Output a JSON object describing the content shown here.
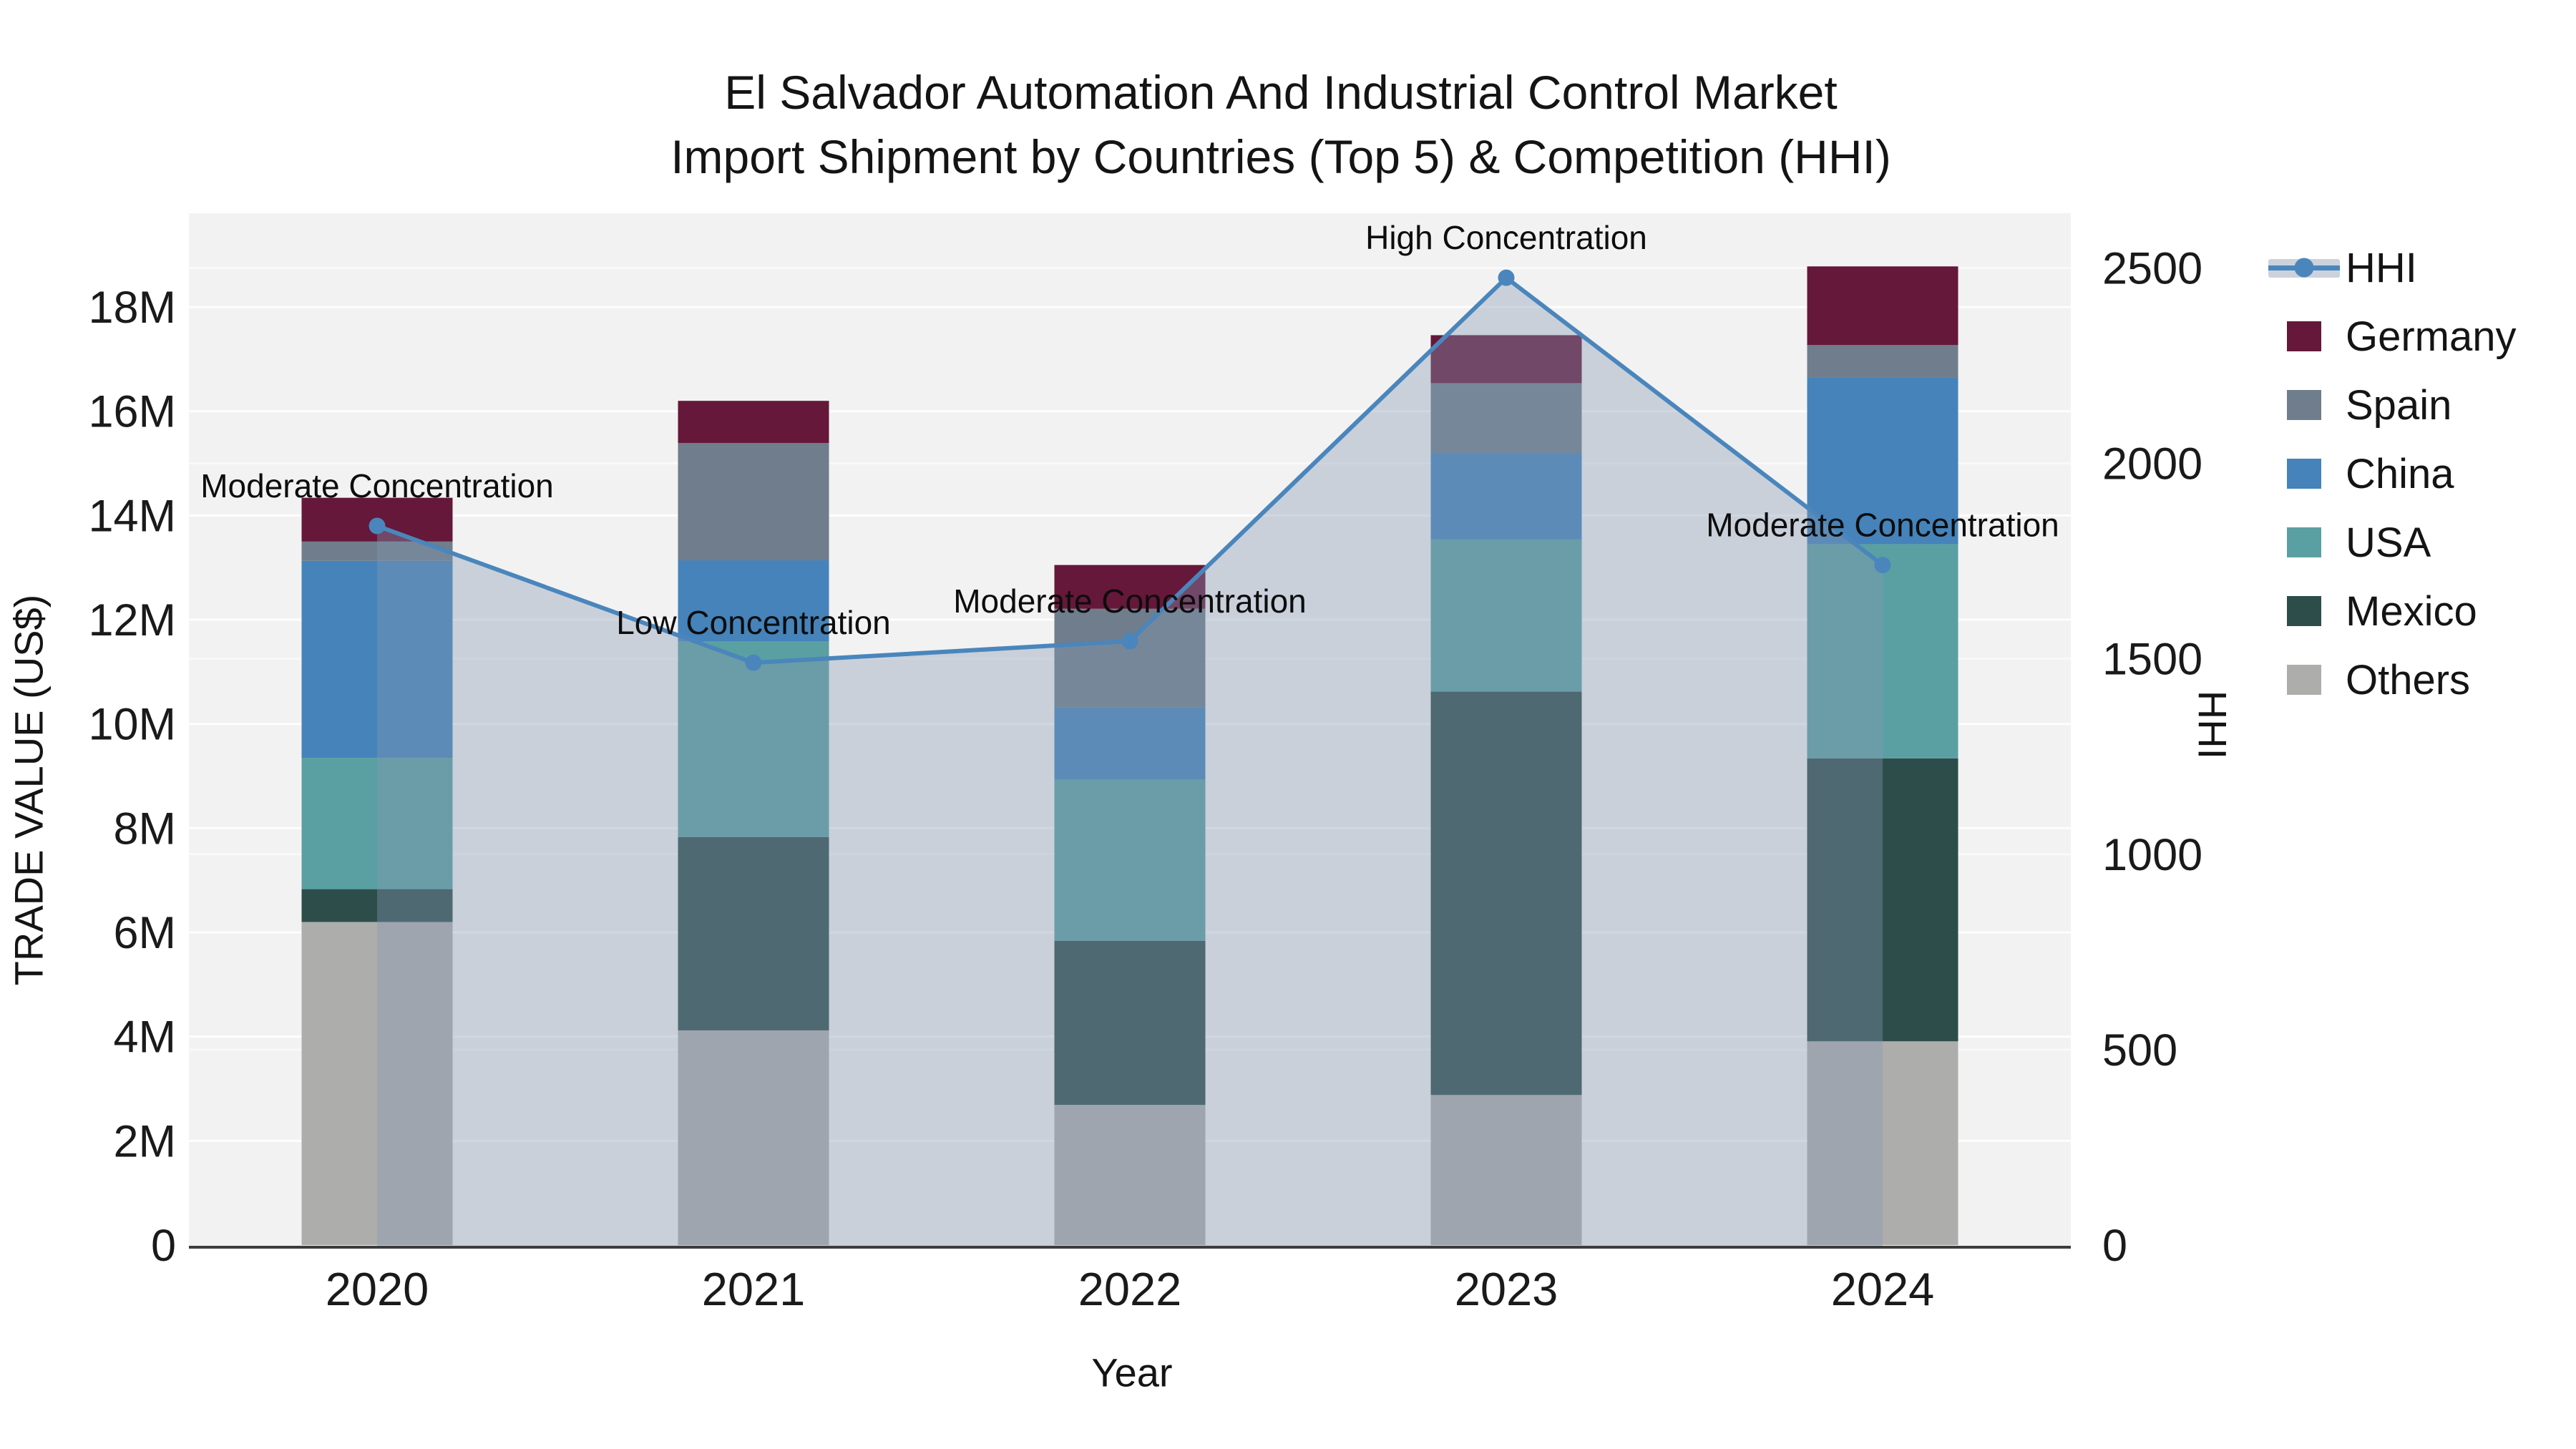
{
  "chart_data": {
    "type": "stacked-bar+line",
    "title1": "El Salvador Automation And Industrial Control Market",
    "title2": "Import Shipment by Countries (Top 5) & Competition (HHI)",
    "xlabel": "Year",
    "ylabel": "TRADE VALUE (US$)",
    "y2label": "HHI",
    "categories": [
      "2020",
      "2021",
      "2022",
      "2023",
      "2024"
    ],
    "series": [
      {
        "name": "Others",
        "color": "#ADADAB",
        "values": [
          6.2,
          4.12,
          2.69,
          2.88,
          3.91
        ]
      },
      {
        "name": "Mexico",
        "color": "#2D4D4B",
        "values": [
          0.63,
          3.71,
          3.15,
          7.74,
          5.43
        ]
      },
      {
        "name": "USA",
        "color": "#5AA0A2",
        "values": [
          2.52,
          3.75,
          3.09,
          2.92,
          4.11
        ]
      },
      {
        "name": "China",
        "color": "#4583BA",
        "values": [
          3.78,
          1.56,
          1.39,
          1.66,
          3.2
        ]
      },
      {
        "name": "Spain",
        "color": "#6F7D8C",
        "values": [
          0.37,
          2.25,
          1.89,
          1.34,
          0.62
        ]
      },
      {
        "name": "Germany",
        "color": "#651839",
        "values": [
          0.84,
          0.81,
          0.84,
          0.92,
          1.51
        ]
      }
    ],
    "totals": [
      14.34,
      16.2,
      13.05,
      17.46,
      18.78
    ],
    "hhi": {
      "name": "HHI",
      "color": "#4A86BC",
      "area_color": "rgba(134,152,179,0.38)",
      "values": [
        1840,
        1490,
        1545,
        2475,
        1740
      ],
      "annotations": [
        "Moderate Concentration",
        "Low Concentration",
        "Moderate Concentration",
        "High Concentration",
        "Moderate Concentration"
      ]
    },
    "y_axis": {
      "lim": [
        0,
        19.8
      ],
      "ticks": [
        {
          "v": 0,
          "label": "0"
        },
        {
          "v": 2,
          "label": "2M"
        },
        {
          "v": 4,
          "label": "4M"
        },
        {
          "v": 6,
          "label": "6M"
        },
        {
          "v": 8,
          "label": "8M"
        },
        {
          "v": 10,
          "label": "10M"
        },
        {
          "v": 12,
          "label": "12M"
        },
        {
          "v": 14,
          "label": "14M"
        },
        {
          "v": 16,
          "label": "16M"
        },
        {
          "v": 18,
          "label": "18M"
        }
      ]
    },
    "y2_axis": {
      "lim": [
        0,
        2640
      ],
      "ticks": [
        {
          "v": 0,
          "label": "0"
        },
        {
          "v": 500,
          "label": "500"
        },
        {
          "v": 1000,
          "label": "1000"
        },
        {
          "v": 1500,
          "label": "1500"
        },
        {
          "v": 2000,
          "label": "2000"
        },
        {
          "v": 2500,
          "label": "2500"
        }
      ]
    },
    "legend_position": "right",
    "grid": true,
    "plot_bg": "#F2F2F3"
  },
  "legend": {
    "items": [
      {
        "label": "HHI",
        "type": "line",
        "color": "#4A86BC"
      },
      {
        "label": "Germany",
        "type": "box",
        "color": "#651839"
      },
      {
        "label": "Spain",
        "type": "box",
        "color": "#6F7D8C"
      },
      {
        "label": "China",
        "type": "box",
        "color": "#4583BA"
      },
      {
        "label": "USA",
        "type": "box",
        "color": "#5AA0A2"
      },
      {
        "label": "Mexico",
        "type": "box",
        "color": "#2D4D4B"
      },
      {
        "label": "Others",
        "type": "box",
        "color": "#ADADAB"
      }
    ]
  }
}
